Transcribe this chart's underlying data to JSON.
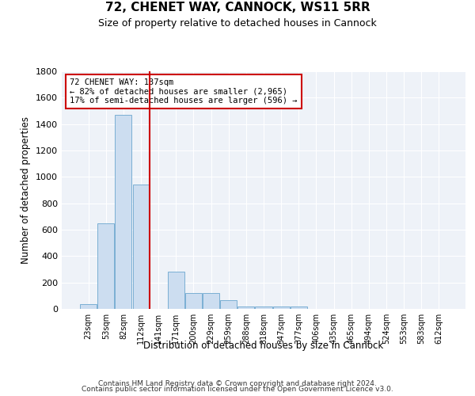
{
  "title": "72, CHENET WAY, CANNOCK, WS11 5RR",
  "subtitle": "Size of property relative to detached houses in Cannock",
  "xlabel": "Distribution of detached houses by size in Cannock",
  "ylabel": "Number of detached properties",
  "categories": [
    "23sqm",
    "53sqm",
    "82sqm",
    "112sqm",
    "141sqm",
    "171sqm",
    "200sqm",
    "229sqm",
    "259sqm",
    "288sqm",
    "318sqm",
    "347sqm",
    "377sqm",
    "406sqm",
    "435sqm",
    "465sqm",
    "494sqm",
    "524sqm",
    "553sqm",
    "583sqm",
    "612sqm"
  ],
  "values": [
    35,
    650,
    1470,
    940,
    0,
    285,
    120,
    120,
    65,
    20,
    20,
    20,
    20,
    0,
    0,
    0,
    0,
    0,
    0,
    0,
    0
  ],
  "bar_color": "#ccddf0",
  "bar_edge_color": "#7aafd4",
  "vline_x": 3.5,
  "vline_color": "#cc0000",
  "annotation_text": "72 CHENET WAY: 137sqm\n← 82% of detached houses are smaller (2,965)\n17% of semi-detached houses are larger (596) →",
  "annotation_box_color": "#ffffff",
  "annotation_box_edge_color": "#cc0000",
  "footer_line1": "Contains HM Land Registry data © Crown copyright and database right 2024.",
  "footer_line2": "Contains public sector information licensed under the Open Government Licence v3.0.",
  "background_color": "#eef2f8",
  "ylim": [
    0,
    1800
  ],
  "yticks": [
    0,
    200,
    400,
    600,
    800,
    1000,
    1200,
    1400,
    1600,
    1800
  ]
}
